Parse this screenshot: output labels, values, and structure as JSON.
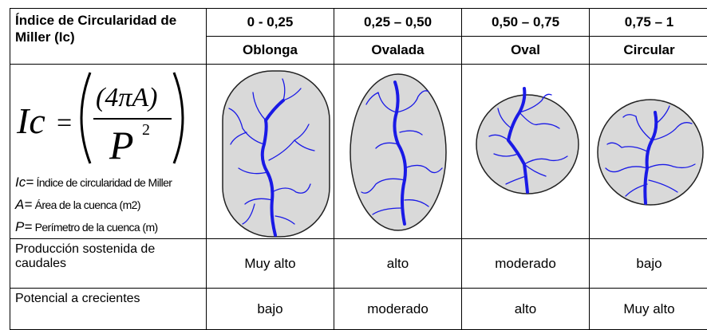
{
  "header": {
    "title": "Índice de Circularidad de Miller (Ic)",
    "ranges": [
      "0 - 0,25",
      "0,25 – 0,50",
      "0,50 – 0,75",
      "0,75 – 1"
    ],
    "shapes": [
      "Oblonga",
      "Ovalada",
      "Oval",
      "Circular"
    ]
  },
  "formula": {
    "lhs": "Ic",
    "equals": "=",
    "numerator": "(4πA)",
    "denominator": "P",
    "exponent": "2"
  },
  "definitions": [
    {
      "symbol": "Ic=",
      "text": "Índice de circularidad de Miller"
    },
    {
      "symbol": "A=",
      "text": "Área de la cuenca (m2)"
    },
    {
      "symbol": "P=",
      "text": "Perímetro de la cuenca (m)"
    }
  ],
  "rows": [
    {
      "label": "Producción sostenida de caudales",
      "values": [
        "Muy alto",
        "alto",
        "moderado",
        "bajo"
      ]
    },
    {
      "label": "Potencial a crecientes",
      "values": [
        "bajo",
        "moderado",
        "alto",
        "Muy alto"
      ]
    }
  ]
}
